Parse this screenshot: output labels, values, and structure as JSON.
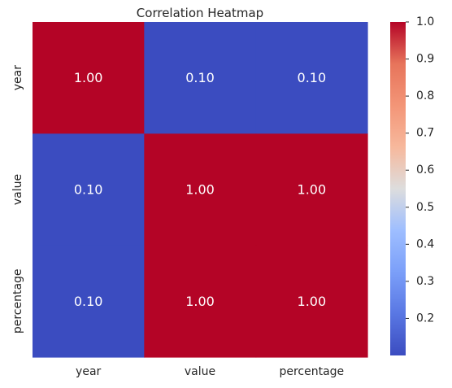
{
  "chart_data": {
    "type": "heatmap",
    "title": "Correlation Heatmap",
    "x_labels": [
      "year",
      "value",
      "percentage"
    ],
    "y_labels": [
      "year",
      "value",
      "percentage"
    ],
    "values": [
      [
        1.0,
        0.1,
        0.1
      ],
      [
        0.1,
        1.0,
        1.0
      ],
      [
        0.1,
        1.0,
        1.0
      ]
    ],
    "cell_text": [
      [
        "1.00",
        "0.10",
        "0.10"
      ],
      [
        "0.10",
        "1.00",
        "1.00"
      ],
      [
        "0.10",
        "1.00",
        "1.00"
      ]
    ],
    "colormap": "coolwarm",
    "colorbar": {
      "min": 0.1,
      "max": 1.0,
      "ticks": [
        0.2,
        0.3,
        0.4,
        0.5,
        0.6,
        0.7,
        0.8,
        0.9,
        1.0
      ],
      "tick_labels": [
        "0.2",
        "0.3",
        "0.4",
        "0.5",
        "0.6",
        "0.7",
        "0.8",
        "0.9",
        "1.0"
      ],
      "placement": "right"
    },
    "colors": {
      "low": "#3b4cc0",
      "mid": "#dddddd",
      "high": "#b40426"
    },
    "grid": false,
    "legend": "none"
  }
}
